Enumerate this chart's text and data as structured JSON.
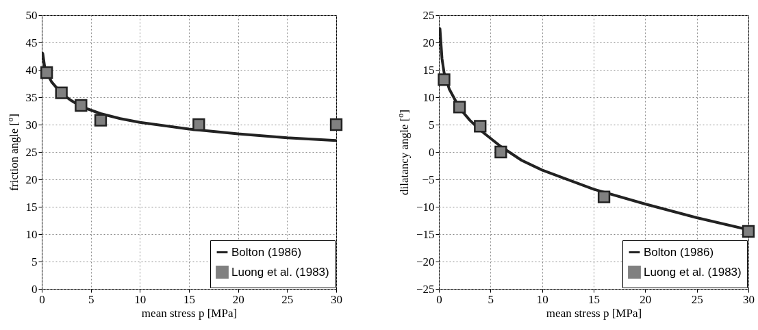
{
  "chart_data": [
    {
      "type": "line",
      "xlabel": "mean stress p [MPa]",
      "ylabel": "friction angle [$^{o}$]",
      "xlim": [
        0,
        30
      ],
      "xticks": [
        0,
        5,
        10,
        15,
        20,
        25,
        30
      ],
      "ylim": [
        0,
        50
      ],
      "yticks": [
        0,
        5,
        10,
        15,
        20,
        25,
        30,
        35,
        40,
        45,
        50
      ],
      "grid": true,
      "legend": "bottom right",
      "series": [
        {
          "name": "Bolton (1986)",
          "type": "line",
          "color": "#222222",
          "line_style": "solid",
          "x": [
            0.1,
            0.3,
            0.5,
            1,
            2,
            3,
            4,
            6,
            8,
            10,
            15,
            20,
            25,
            30
          ],
          "values": [
            43,
            40.5,
            39.5,
            37.8,
            35.7,
            34.4,
            33.3,
            32,
            31.1,
            30.4,
            29.2,
            28.3,
            27.6,
            27.1
          ]
        },
        {
          "name": "Luong et al. (1983)",
          "type": "scatter",
          "marker": "square",
          "color": "#808080",
          "x": [
            0.5,
            2,
            4,
            6,
            16,
            30
          ],
          "values": [
            39.5,
            35.8,
            33.5,
            30.8,
            30,
            30
          ]
        }
      ]
    },
    {
      "type": "line",
      "xlabel": "mean stress p [MPa]",
      "ylabel": "dilatancy angle [$^{o}$]",
      "xlim": [
        0,
        30
      ],
      "xticks": [
        0,
        5,
        10,
        15,
        20,
        25,
        30
      ],
      "ylim": [
        -25,
        25
      ],
      "yticks": [
        -25,
        -20,
        -15,
        -10,
        -5,
        0,
        5,
        10,
        15,
        20,
        25
      ],
      "grid": true,
      "legend": "bottom right",
      "series": [
        {
          "name": "Bolton (1986)",
          "type": "line",
          "color": "#222222",
          "line_style": "solid",
          "x": [
            0.1,
            0.3,
            0.5,
            1,
            2,
            3,
            4,
            6,
            8,
            10,
            15,
            20,
            25,
            30
          ],
          "values": [
            22.5,
            17,
            14.5,
            11.5,
            8,
            5.8,
            4,
            1,
            -1.5,
            -3.3,
            -6.8,
            -9.5,
            -12,
            -14.2
          ]
        },
        {
          "name": "Luong et al. (1983)",
          "type": "scatter",
          "marker": "square",
          "color": "#808080",
          "x": [
            0.5,
            2,
            4,
            6,
            16,
            30
          ],
          "values": [
            13.2,
            8.2,
            4.7,
            0,
            -8.2,
            -14.5
          ]
        }
      ]
    }
  ]
}
